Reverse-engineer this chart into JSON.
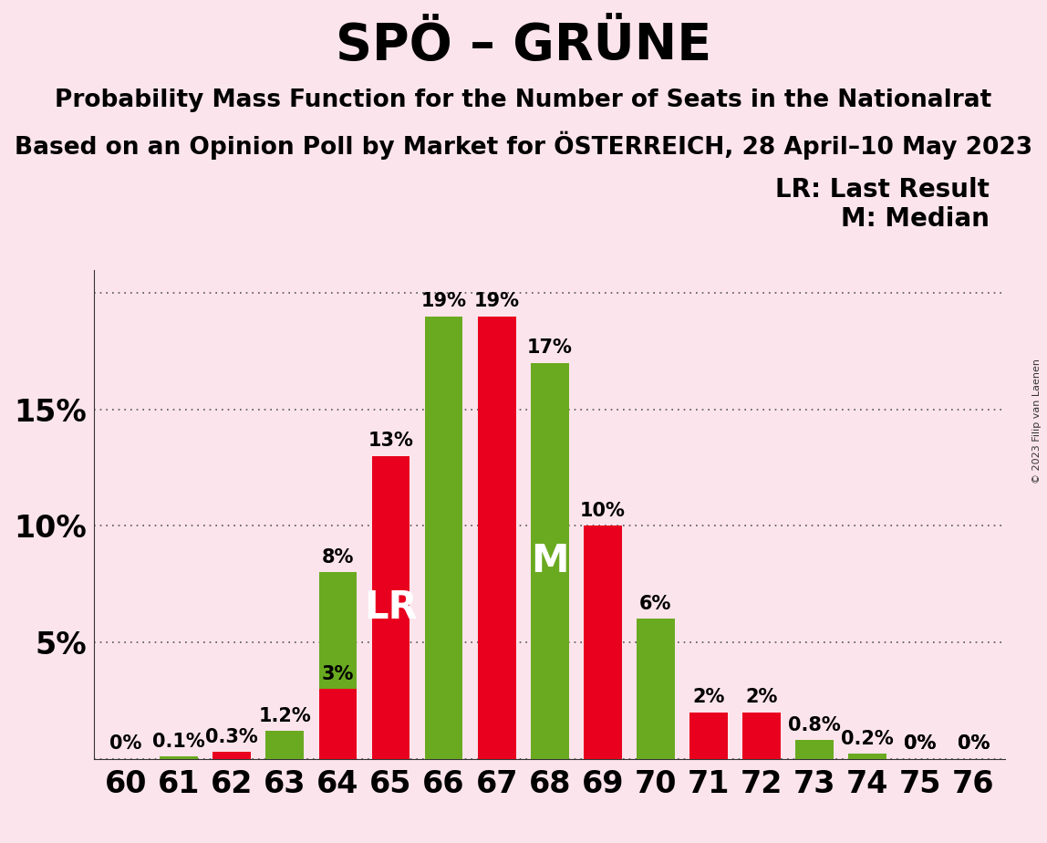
{
  "title": "SPÖ – GRÜNE",
  "subtitle1": "Probability Mass Function for the Number of Seats in the Nationalrat",
  "subtitle2": "Based on an Opinion Poll by Market for ÖSTERREICH, 28 April–10 May 2023",
  "copyright": "© 2023 Filip van Laenen",
  "legend_lr": "LR: Last Result",
  "legend_m": "M: Median",
  "background_color": "#fce4ec",
  "bar_color_green": "#6aaa20",
  "bar_color_red": "#e8001e",
  "seats": [
    60,
    61,
    62,
    63,
    64,
    65,
    66,
    67,
    68,
    69,
    70,
    71,
    72,
    73,
    74,
    75,
    76
  ],
  "green_values": [
    0.0,
    0.1,
    0.0,
    1.2,
    8.0,
    0.0,
    19.0,
    0.0,
    17.0,
    0.0,
    6.0,
    0.0,
    0.0,
    0.8,
    0.2,
    0.0,
    0.0
  ],
  "red_values": [
    0.0,
    0.0,
    0.3,
    0.0,
    3.0,
    13.0,
    0.0,
    19.0,
    0.0,
    10.0,
    0.0,
    2.0,
    2.0,
    0.0,
    0.0,
    0.0,
    0.0
  ],
  "green_labels": [
    "0%",
    "0.1%",
    "",
    "1.2%",
    "8%",
    "",
    "19%",
    "",
    "17%",
    "",
    "6%",
    "",
    "",
    "0.8%",
    "0.2%",
    "0%",
    "0%"
  ],
  "red_labels": [
    "",
    "",
    "0.3%",
    "",
    "3%",
    "13%",
    "",
    "19%",
    "",
    "10%",
    "",
    "2%",
    "2%",
    "",
    "",
    "0%",
    "0%"
  ],
  "show_green_label": [
    true,
    true,
    false,
    true,
    true,
    false,
    true,
    false,
    true,
    false,
    true,
    false,
    false,
    true,
    true,
    true,
    true
  ],
  "show_red_label": [
    false,
    false,
    true,
    false,
    true,
    true,
    false,
    true,
    false,
    true,
    false,
    true,
    true,
    false,
    false,
    true,
    true
  ],
  "lr_seat": 65,
  "lr_color": "red",
  "median_seat": 68,
  "median_color": "green",
  "ylim": [
    0,
    21
  ],
  "yticks": [
    0,
    5,
    10,
    15,
    20
  ],
  "ytick_labels": [
    "",
    "5%",
    "10%",
    "15%",
    ""
  ],
  "title_fontsize": 40,
  "subtitle_fontsize": 19,
  "label_fontsize": 15,
  "axis_fontsize": 24,
  "legend_fontsize": 20,
  "lr_label_fontsize": 30,
  "m_label_fontsize": 30,
  "bar_width": 0.72
}
